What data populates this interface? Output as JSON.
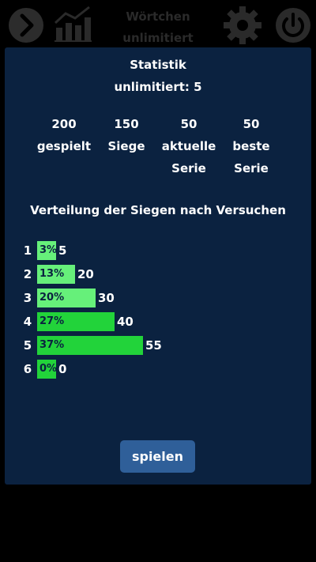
{
  "header": {
    "title_line1": "Wörtchen",
    "title_line2": "unlimitiert",
    "icons": [
      "chevron-right-icon",
      "chart-icon",
      "gear-icon",
      "power-icon"
    ]
  },
  "modal": {
    "title": "Statistik",
    "subtitle": "unlimitiert: 5",
    "stats": [
      {
        "value": "200",
        "label1": "gespielt",
        "label2": ""
      },
      {
        "value": "150",
        "label1": "Siege",
        "label2": ""
      },
      {
        "value": "50",
        "label1": "aktuelle",
        "label2": "Serie"
      },
      {
        "value": "50",
        "label1": "beste",
        "label2": "Serie"
      }
    ],
    "distribution_title": "Verteilung der Siegen nach Versuchen",
    "distribution": [
      {
        "attempt": "1",
        "percent": "3%",
        "count": "5",
        "fraction": 0.09
      },
      {
        "attempt": "2",
        "percent": "13%",
        "count": "20",
        "fraction": 0.36
      },
      {
        "attempt": "3",
        "percent": "20%",
        "count": "30",
        "fraction": 0.55
      },
      {
        "attempt": "4",
        "percent": "27%",
        "count": "40",
        "fraction": 0.73
      },
      {
        "attempt": "5",
        "percent": "37%",
        "count": "55",
        "fraction": 1.0
      },
      {
        "attempt": "6",
        "percent": "0%",
        "count": "0",
        "fraction": 0.0
      }
    ],
    "play_label": "spielen"
  },
  "colors": {
    "background": "#000000",
    "modal": "#0b2240",
    "bar_light": "#66f07a",
    "bar_dark": "#22d33a",
    "button": "#2f5f99"
  }
}
